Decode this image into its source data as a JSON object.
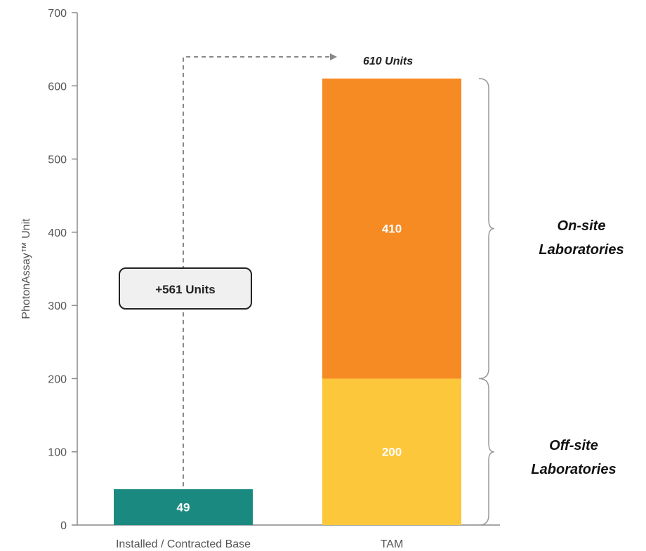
{
  "chart_data": {
    "type": "bar",
    "stacked": true,
    "ylabel": "PhotonAssay™ Unit",
    "ylim": [
      0,
      700
    ],
    "yticks": [
      0,
      100,
      200,
      300,
      400,
      500,
      600,
      700
    ],
    "grid": false,
    "categories": [
      "Installed / Contracted Base",
      "TAM"
    ],
    "bars": [
      {
        "category": "Installed / Contracted Base",
        "segments": [
          {
            "value": 49,
            "label": "49",
            "color": "#1a8a80"
          }
        ]
      },
      {
        "category": "TAM",
        "segments": [
          {
            "value": 200,
            "label": "200",
            "color": "#fcc73b"
          },
          {
            "value": 410,
            "label": "410",
            "color": "#f68a23"
          }
        ]
      }
    ],
    "annotations": {
      "total_label": "610 Units",
      "difference_label": "+561 Units",
      "segment_braces": [
        {
          "from": 200,
          "to": 610,
          "line1": "On-site",
          "line2": "Laboratories"
        },
        {
          "from": 0,
          "to": 200,
          "line1": "Off-site",
          "line2": "Laboratories"
        }
      ]
    },
    "colors": {
      "axis": "#888888",
      "dash": "#888888",
      "brace": "#999999",
      "callout_fill": "#f0f0f0",
      "callout_stroke": "#222222"
    }
  }
}
